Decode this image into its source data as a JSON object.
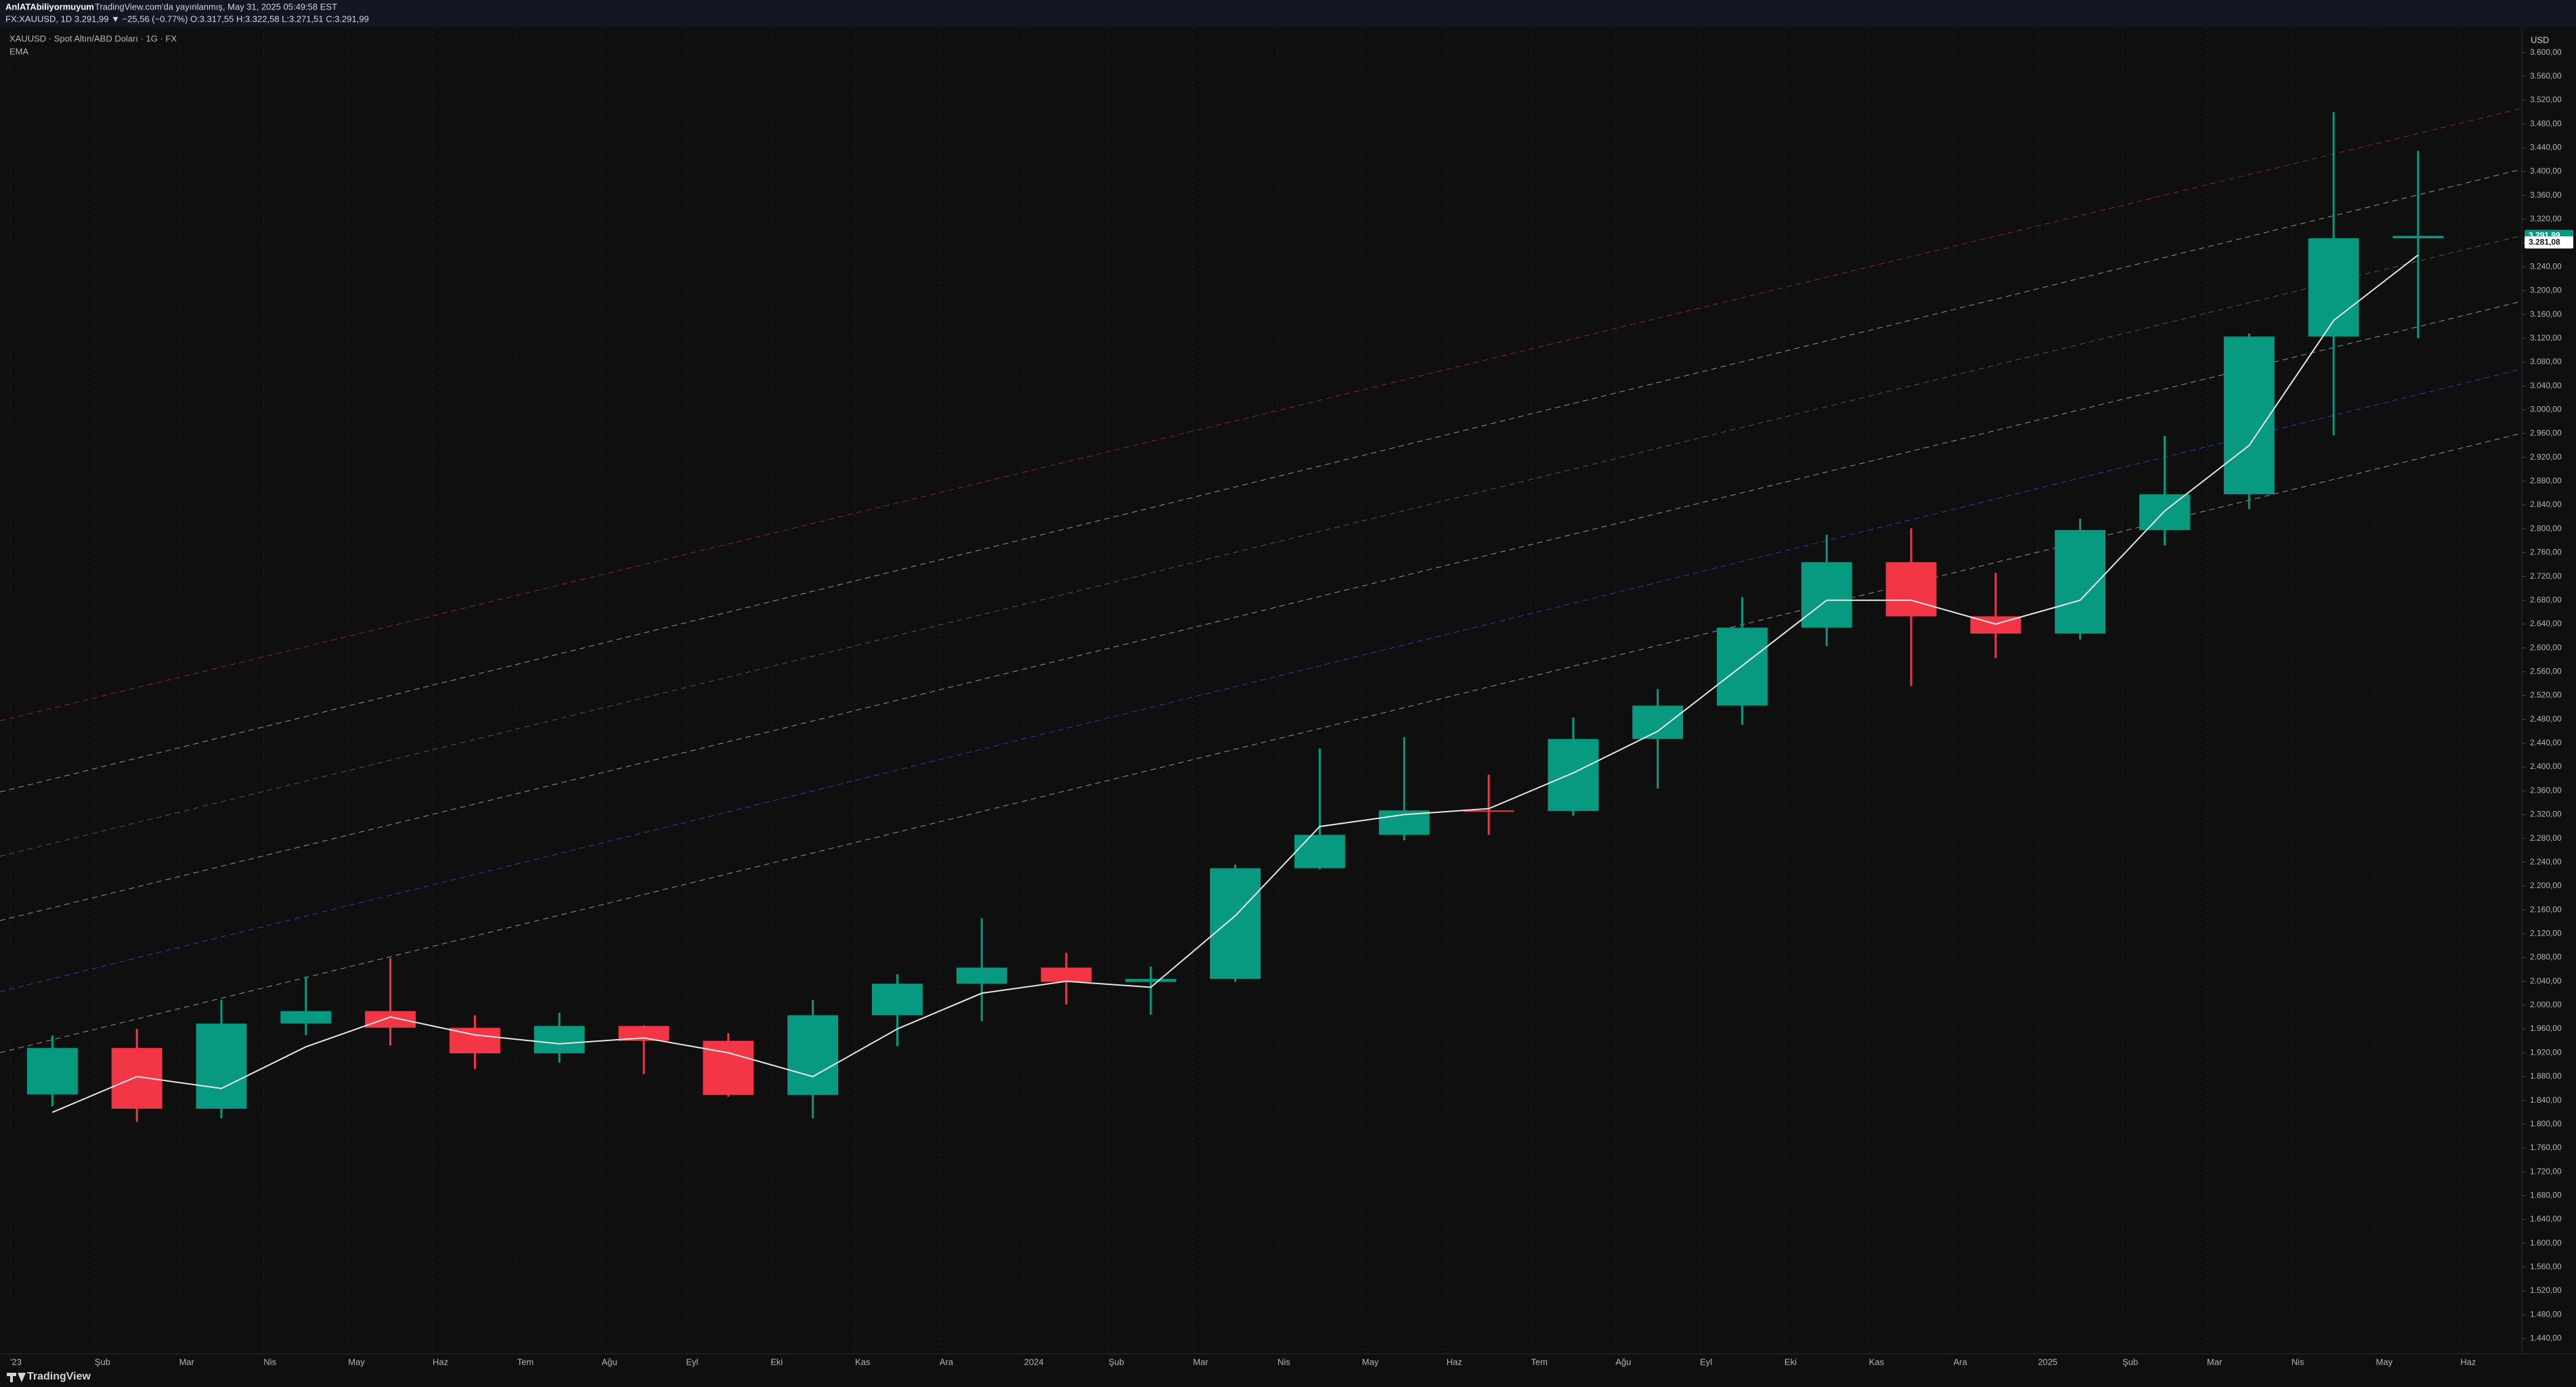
{
  "chart_data": {
    "type": "candlestick",
    "author": "AnlATAbiliyormuyum",
    "published": "TradingView.com'da yayınlanmış, May 31, 2025 05:49:58 EST",
    "symbol_line": "FX:XAUUSD, 1D 3.291,99 ▼ −25,56 (−0.77%) O:3.317,55 H:3.322,58 L:3.271,51 C:3.291,99",
    "title": "XAUUSD · Spot Altın/ABD Doları · 1G · FX",
    "currency": "USD",
    "brand": "TradingView",
    "up_color": "#089981",
    "down_color": "#f23645",
    "categories": [
      "'23",
      "Şub",
      "Mar",
      "Nis",
      "May",
      "Haz",
      "Tem",
      "Ağu",
      "Eyl",
      "Eki",
      "Kas",
      "Ara",
      "2024",
      "Şub",
      "Mar",
      "Nis",
      "May",
      "Haz",
      "Tem",
      "Ağu",
      "Eyl",
      "Eki",
      "Kas",
      "Ara",
      "2025",
      "Şub",
      "Mar",
      "Nis",
      "May",
      "Haz"
    ],
    "open": [
      1850,
      1928,
      1826,
      1969,
      1990,
      1962,
      1919,
      1965,
      1940,
      1849,
      1983,
      2036,
      2063,
      2039,
      2044,
      2230,
      2286,
      2327,
      2326,
      2447,
      2503,
      2634,
      2744,
      2653,
      2624,
      2798,
      2858,
      3123,
      3288,
      null
    ],
    "high": [
      1949,
      1960,
      2009,
      2048,
      2079,
      1983,
      1987,
      1966,
      1953,
      2009,
      2052,
      2146,
      2088,
      2065,
      2236,
      2431,
      2450,
      2387,
      2483,
      2531,
      2685,
      2790,
      2801,
      2726,
      2817,
      2956,
      3128,
      3500,
      3435,
      null
    ],
    "low": [
      1830,
      1804,
      1810,
      1950,
      1932,
      1893,
      1903,
      1884,
      1846,
      1810,
      1931,
      1973,
      2001,
      1984,
      2039,
      2228,
      2277,
      2286,
      2318,
      2364,
      2471,
      2603,
      2536,
      2583,
      2614,
      2772,
      2833,
      2957,
      3120,
      null
    ],
    "close": [
      1928,
      1826,
      1969,
      1990,
      1962,
      1919,
      1965,
      1940,
      1849,
      1983,
      2036,
      2063,
      2039,
      2044,
      2230,
      2286,
      2327,
      2326,
      2447,
      2503,
      2634,
      2744,
      2653,
      2624,
      2798,
      2858,
      3123,
      3288,
      3292,
      null
    ],
    "ema": {
      "name": "EMA",
      "color": "#e6e6e6",
      "values": [
        1820,
        1880,
        1860,
        1930,
        1980,
        1950,
        1935,
        1945,
        1920,
        1880,
        1960,
        2020,
        2040,
        2030,
        2150,
        2300,
        2320,
        2330,
        2390,
        2460,
        2570,
        2680,
        2680,
        2640,
        2680,
        2830,
        2940,
        3150,
        3260,
        null
      ]
    },
    "last_price": {
      "value": 3291.99,
      "label": "3.291,99"
    },
    "ema_last": {
      "value": 3281.08,
      "label": "3.281,08"
    },
    "ylim": [
      1420,
      3620
    ],
    "yticks": [
      {
        "value": 1440,
        "label": "1.440,00"
      },
      {
        "value": 1480,
        "label": "1.480,00"
      },
      {
        "value": 1520,
        "label": "1.520,00"
      },
      {
        "value": 1560,
        "label": "1.560,00"
      },
      {
        "value": 1600,
        "label": "1.600,00"
      },
      {
        "value": 1640,
        "label": "1.640,00"
      },
      {
        "value": 1680,
        "label": "1.680,00"
      },
      {
        "value": 1720,
        "label": "1.720,00"
      },
      {
        "value": 1760,
        "label": "1.760,00"
      },
      {
        "value": 1800,
        "label": "1.800,00"
      },
      {
        "value": 1840,
        "label": "1.840,00"
      },
      {
        "value": 1880,
        "label": "1.880,00"
      },
      {
        "value": 1920,
        "label": "1.920,00"
      },
      {
        "value": 1960,
        "label": "1.960,00"
      },
      {
        "value": 2000,
        "label": "2.000,00"
      },
      {
        "value": 2040,
        "label": "2.040,00"
      },
      {
        "value": 2080,
        "label": "2.080,00"
      },
      {
        "value": 2120,
        "label": "2.120,00"
      },
      {
        "value": 2160,
        "label": "2.160,00"
      },
      {
        "value": 2200,
        "label": "2.200,00"
      },
      {
        "value": 2240,
        "label": "2.240,00"
      },
      {
        "value": 2280,
        "label": "2.280,00"
      },
      {
        "value": 2320,
        "label": "2.320,00"
      },
      {
        "value": 2360,
        "label": "2.360,00"
      },
      {
        "value": 2400,
        "label": "2.400,00"
      },
      {
        "value": 2440,
        "label": "2.440,00"
      },
      {
        "value": 2480,
        "label": "2.480,00"
      },
      {
        "value": 2520,
        "label": "2.520,00"
      },
      {
        "value": 2560,
        "label": "2.560,00"
      },
      {
        "value": 2600,
        "label": "2.600,00"
      },
      {
        "value": 2640,
        "label": "2.640,00"
      },
      {
        "value": 2680,
        "label": "2.680,00"
      },
      {
        "value": 2720,
        "label": "2.720,00"
      },
      {
        "value": 2760,
        "label": "2.760,00"
      },
      {
        "value": 2800,
        "label": "2.800,00"
      },
      {
        "value": 2840,
        "label": "2.840,00"
      },
      {
        "value": 2880,
        "label": "2.880,00"
      },
      {
        "value": 2920,
        "label": "2.920,00"
      },
      {
        "value": 2960,
        "label": "2.960,00"
      },
      {
        "value": 3000,
        "label": "3.000,00"
      },
      {
        "value": 3040,
        "label": "3.040,00"
      },
      {
        "value": 3080,
        "label": "3.080,00"
      },
      {
        "value": 3120,
        "label": "3.120,00"
      },
      {
        "value": 3160,
        "label": "3.160,00"
      },
      {
        "value": 3200,
        "label": "3.200,00"
      },
      {
        "value": 3240,
        "label": "3.240,00"
      },
      {
        "value": 3280,
        "label": "3.280,00"
      },
      {
        "value": 3320,
        "label": "3.320,00"
      },
      {
        "value": 3360,
        "label": "3.360,00"
      },
      {
        "value": 3400,
        "label": "3.400,00"
      },
      {
        "value": 3440,
        "label": "3.440,00"
      },
      {
        "value": 3480,
        "label": "3.480,00"
      },
      {
        "value": 3520,
        "label": "3.520,00"
      },
      {
        "value": 3560,
        "label": "3.560,00"
      },
      {
        "value": 3600,
        "label": "3.600,00"
      }
    ]
  }
}
